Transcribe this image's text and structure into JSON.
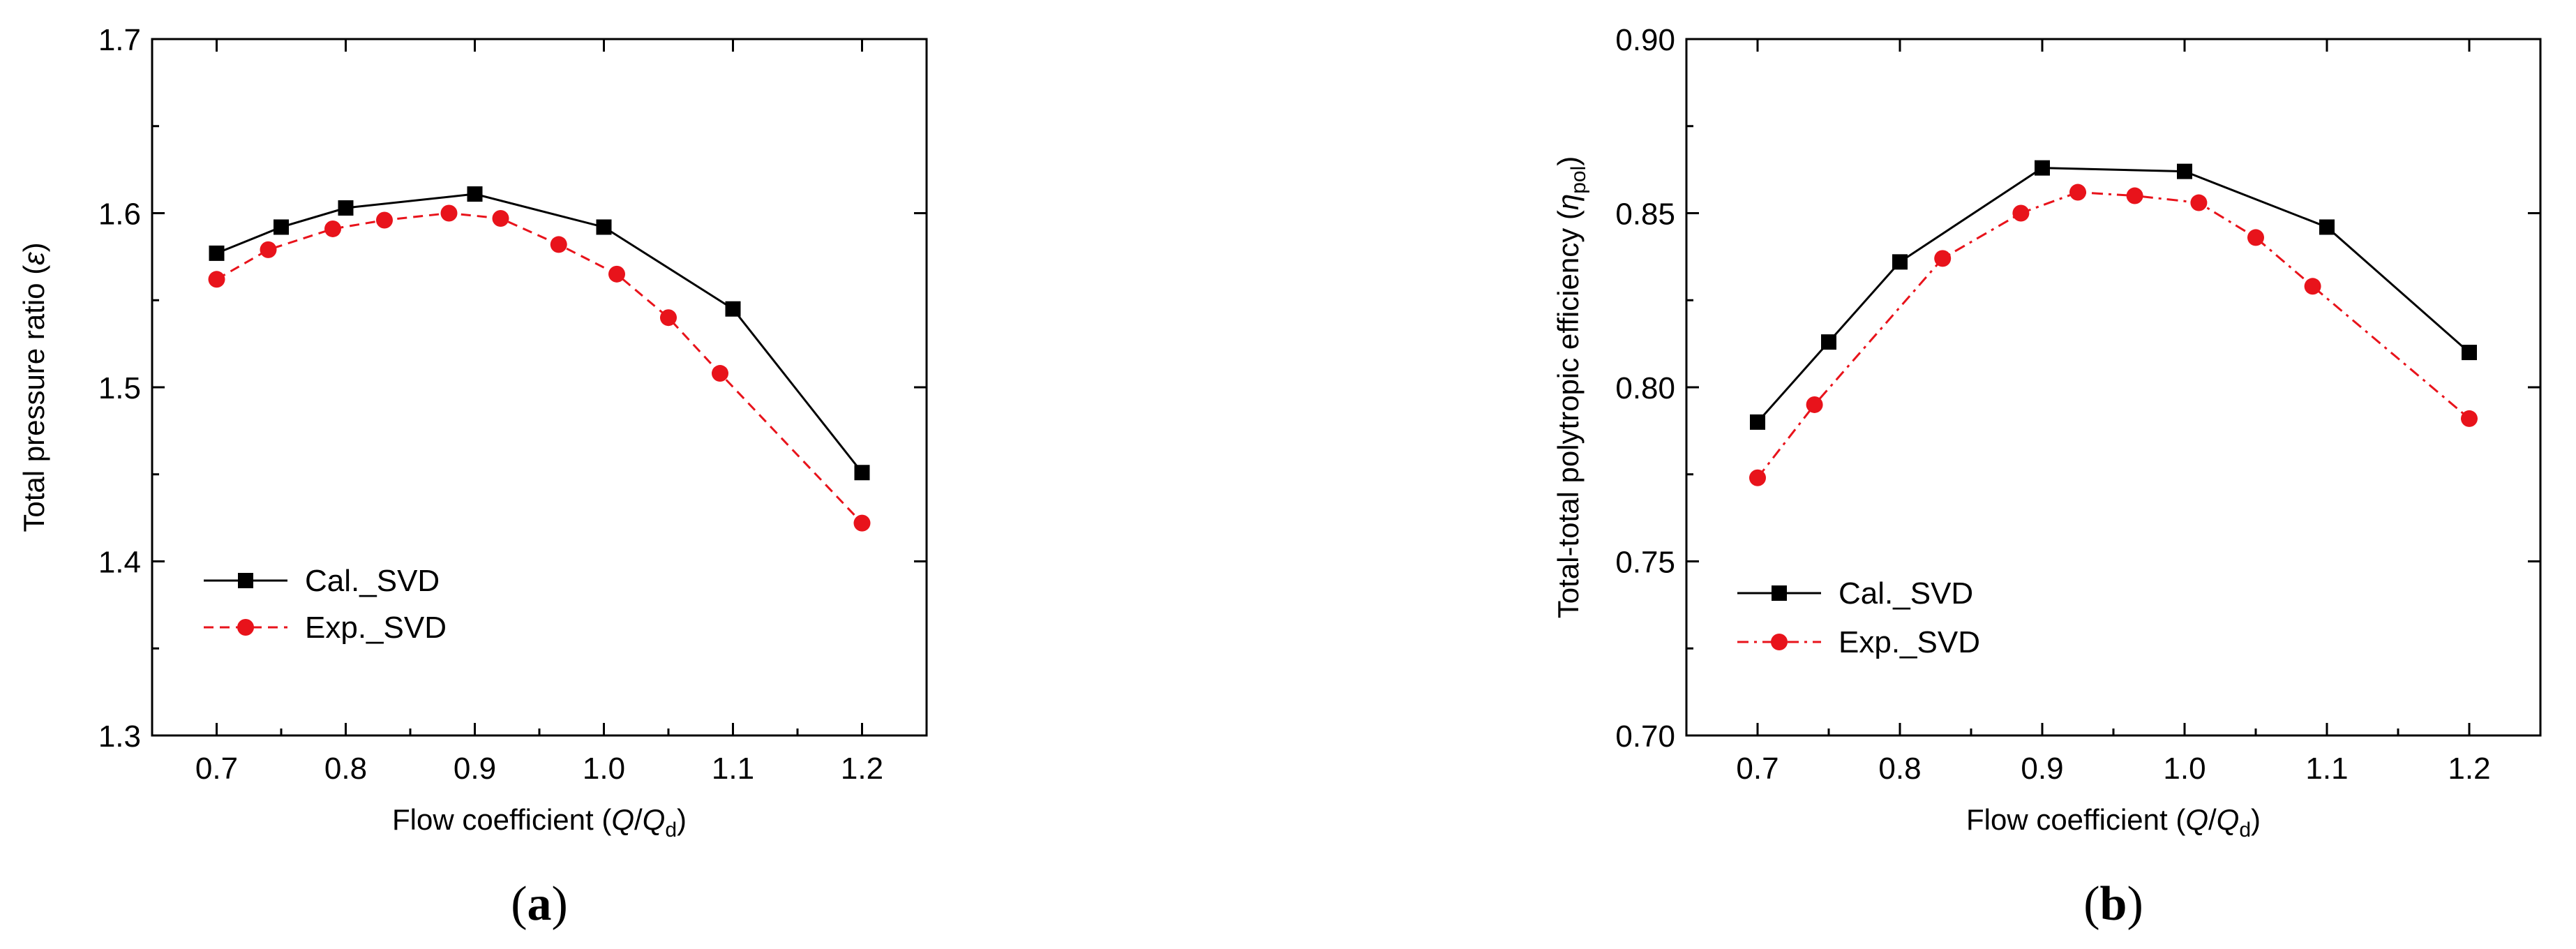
{
  "chart_data": [
    {
      "type": "line",
      "panel_label": "a",
      "xlabel_prefix": "Flow coefficient (",
      "xlabel_var": "Q",
      "xlabel_sep": "/",
      "xlabel_var2": "Q",
      "xlabel_sub": "d",
      "xlabel_suffix": ")",
      "ylabel_prefix": "Total pressure ratio (",
      "ylabel_var": "ε",
      "ylabel_suffix": ")",
      "xlim": [
        0.65,
        1.25
      ],
      "ylim": [
        1.3,
        1.7
      ],
      "xticks": [
        "0.7",
        "0.8",
        "0.9",
        "1.0",
        "1.1",
        "1.2"
      ],
      "yticks": [
        "1.3",
        "1.4",
        "1.5",
        "1.6",
        "1.7"
      ],
      "legend_position": "bottom-left",
      "series": [
        {
          "name": "Cal._SVD",
          "color": "#000000",
          "marker": "square",
          "line": "solid",
          "x": [
            0.7,
            0.75,
            0.8,
            0.9,
            1.0,
            1.1,
            1.2
          ],
          "y": [
            1.577,
            1.592,
            1.603,
            1.611,
            1.592,
            1.545,
            1.451
          ]
        },
        {
          "name": "Exp._SVD",
          "color": "#e8131b",
          "marker": "circle",
          "line": "dashed",
          "x": [
            0.7,
            0.74,
            0.79,
            0.83,
            0.88,
            0.92,
            0.965,
            1.01,
            1.05,
            1.09,
            1.2
          ],
          "y": [
            1.562,
            1.579,
            1.591,
            1.596,
            1.6,
            1.597,
            1.582,
            1.565,
            1.54,
            1.508,
            1.422
          ]
        }
      ]
    },
    {
      "type": "line",
      "panel_label": "b",
      "xlabel_prefix": "Flow coefficient (",
      "xlabel_var": "Q",
      "xlabel_sep": "/",
      "xlabel_var2": "Q",
      "xlabel_sub": "d",
      "xlabel_suffix": ")",
      "ylabel_prefix": "Total-total  polytropic efficiency (",
      "ylabel_var": "η",
      "ylabel_sub": "pol",
      "ylabel_suffix": ")",
      "xlim": [
        0.65,
        1.25
      ],
      "ylim": [
        0.7,
        0.9
      ],
      "xticks": [
        "0.7",
        "0.8",
        "0.9",
        "1.0",
        "1.1",
        "1.2"
      ],
      "yticks": [
        "0.70",
        "0.75",
        "0.80",
        "0.85",
        "0.90"
      ],
      "legend_position": "bottom-left",
      "series": [
        {
          "name": "Cal._SVD",
          "color": "#000000",
          "marker": "square",
          "line": "solid",
          "x": [
            0.7,
            0.75,
            0.8,
            0.9,
            1.0,
            1.1,
            1.2
          ],
          "y": [
            0.79,
            0.813,
            0.836,
            0.863,
            0.862,
            0.846,
            0.81
          ]
        },
        {
          "name": "Exp._SVD",
          "color": "#e8131b",
          "marker": "circle",
          "line": "dashdot",
          "x": [
            0.7,
            0.74,
            0.83,
            0.885,
            0.925,
            0.965,
            1.01,
            1.05,
            1.09,
            1.2
          ],
          "y": [
            0.774,
            0.795,
            0.837,
            0.85,
            0.856,
            0.855,
            0.853,
            0.843,
            0.829,
            0.791
          ]
        }
      ]
    }
  ]
}
